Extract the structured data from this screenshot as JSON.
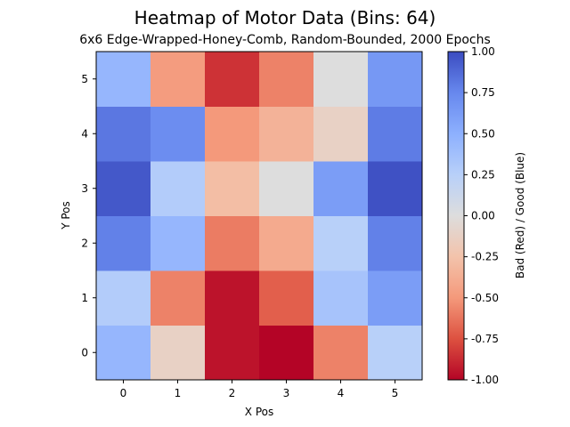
{
  "chart_data": {
    "type": "heatmap",
    "title": "Heatmap of Motor Data (Bins: 64)",
    "subtitle": "6x6 Edge-Wrapped-Honey-Comb, Random-Bounded, 2000 Epochs",
    "xlabel": "X Pos",
    "ylabel": "Y Pos",
    "x_categories": [
      "0",
      "1",
      "2",
      "3",
      "4",
      "5"
    ],
    "y_categories": [
      "0",
      "1",
      "2",
      "3",
      "4",
      "5"
    ],
    "colormap": "coolwarm_r",
    "vmin": -1.0,
    "vmax": 1.0,
    "colorbar": {
      "label": "Bad (Red)    /    Good (Blue)",
      "ticks": [
        "-1.00",
        "-0.75",
        "-0.50",
        "-0.25",
        "0.00",
        "0.25",
        "0.50",
        "0.75",
        "1.00"
      ],
      "tick_values": [
        -1.0,
        -0.75,
        -0.5,
        -0.25,
        0.0,
        0.25,
        0.5,
        0.75,
        1.0
      ]
    },
    "values": [
      [
        0.45,
        -0.12,
        -0.95,
        -1.0,
        -0.58,
        0.25
      ],
      [
        0.28,
        -0.58,
        -0.95,
        -0.7,
        0.35,
        0.62
      ],
      [
        0.78,
        0.45,
        -0.6,
        -0.4,
        0.25,
        0.78
      ],
      [
        0.95,
        0.28,
        -0.28,
        0.0,
        0.62,
        0.98
      ],
      [
        0.82,
        0.72,
        -0.5,
        -0.35,
        -0.12,
        0.8
      ],
      [
        0.45,
        -0.48,
        -0.85,
        -0.58,
        0.0,
        0.65
      ]
    ]
  }
}
